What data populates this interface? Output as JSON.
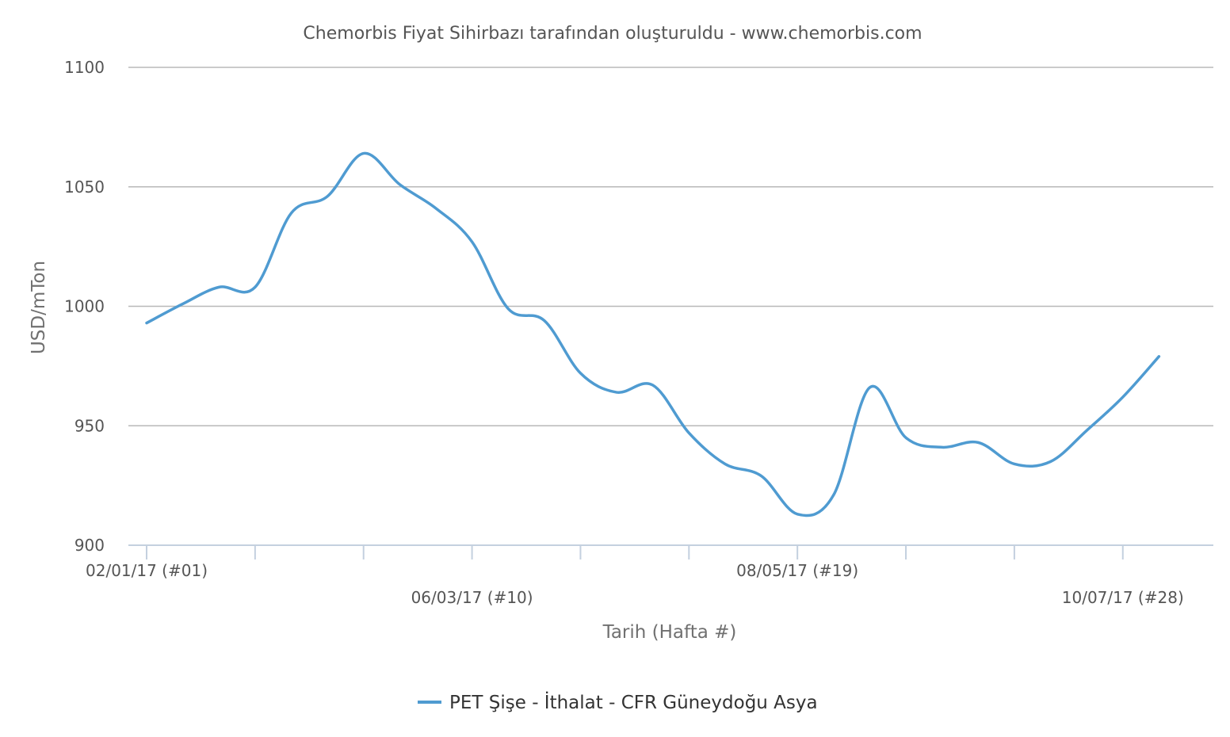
{
  "chart_data": {
    "type": "line",
    "title": "Chemorbis Fiyat Sihirbazı tarafından oluşturuldu - www.chemorbis.com",
    "xlabel": "Tarih (Hafta #)",
    "ylabel": "USD/mTon",
    "ylim": [
      900,
      1100
    ],
    "yticks": [
      900,
      950,
      1000,
      1050,
      1100
    ],
    "grid": true,
    "legend_position": "bottom-center",
    "x_range": [
      "2017-01-02",
      "2017-07-24"
    ],
    "xtick_labels": [
      {
        "date": "2017-01-02",
        "label": "02/01/17 (#01)"
      },
      {
        "date": "2017-03-06",
        "label": "06/03/17 (#10)"
      },
      {
        "date": "2017-05-08",
        "label": "08/05/17 (#19)"
      },
      {
        "date": "2017-07-10",
        "label": "10/07/17 (#28)"
      }
    ],
    "xtick_marks": [
      "2017-01-02",
      "2017-01-23",
      "2017-02-13",
      "2017-03-06",
      "2017-03-27",
      "2017-04-17",
      "2017-05-08",
      "2017-05-29",
      "2017-06-19",
      "2017-07-10"
    ],
    "series": [
      {
        "name": "PET Şişe - İthalat - CFR Güneydoğu Asya",
        "color": "#4f9bd1",
        "x": [
          "2017-01-02",
          "2017-01-09",
          "2017-01-16",
          "2017-01-23",
          "2017-01-30",
          "2017-02-06",
          "2017-02-13",
          "2017-02-20",
          "2017-02-27",
          "2017-03-06",
          "2017-03-13",
          "2017-03-20",
          "2017-03-27",
          "2017-04-03",
          "2017-04-10",
          "2017-04-17",
          "2017-04-24",
          "2017-05-01",
          "2017-05-08",
          "2017-05-15",
          "2017-05-22",
          "2017-05-29",
          "2017-06-05",
          "2017-06-12",
          "2017-06-19",
          "2017-06-26",
          "2017-07-03",
          "2017-07-10",
          "2017-07-17"
        ],
        "y": [
          993,
          1001,
          1008,
          1008,
          1039,
          1046,
          1064,
          1051,
          1041,
          1027,
          999,
          994,
          972,
          964,
          967,
          947,
          934,
          929,
          913,
          921,
          966,
          945,
          941,
          943,
          934,
          935,
          948,
          962,
          979
        ]
      }
    ]
  },
  "colors": {
    "series": "#4f9bd1",
    "grid": "#b8b8b8",
    "axis": "#c4d0df",
    "text": "#555555"
  }
}
